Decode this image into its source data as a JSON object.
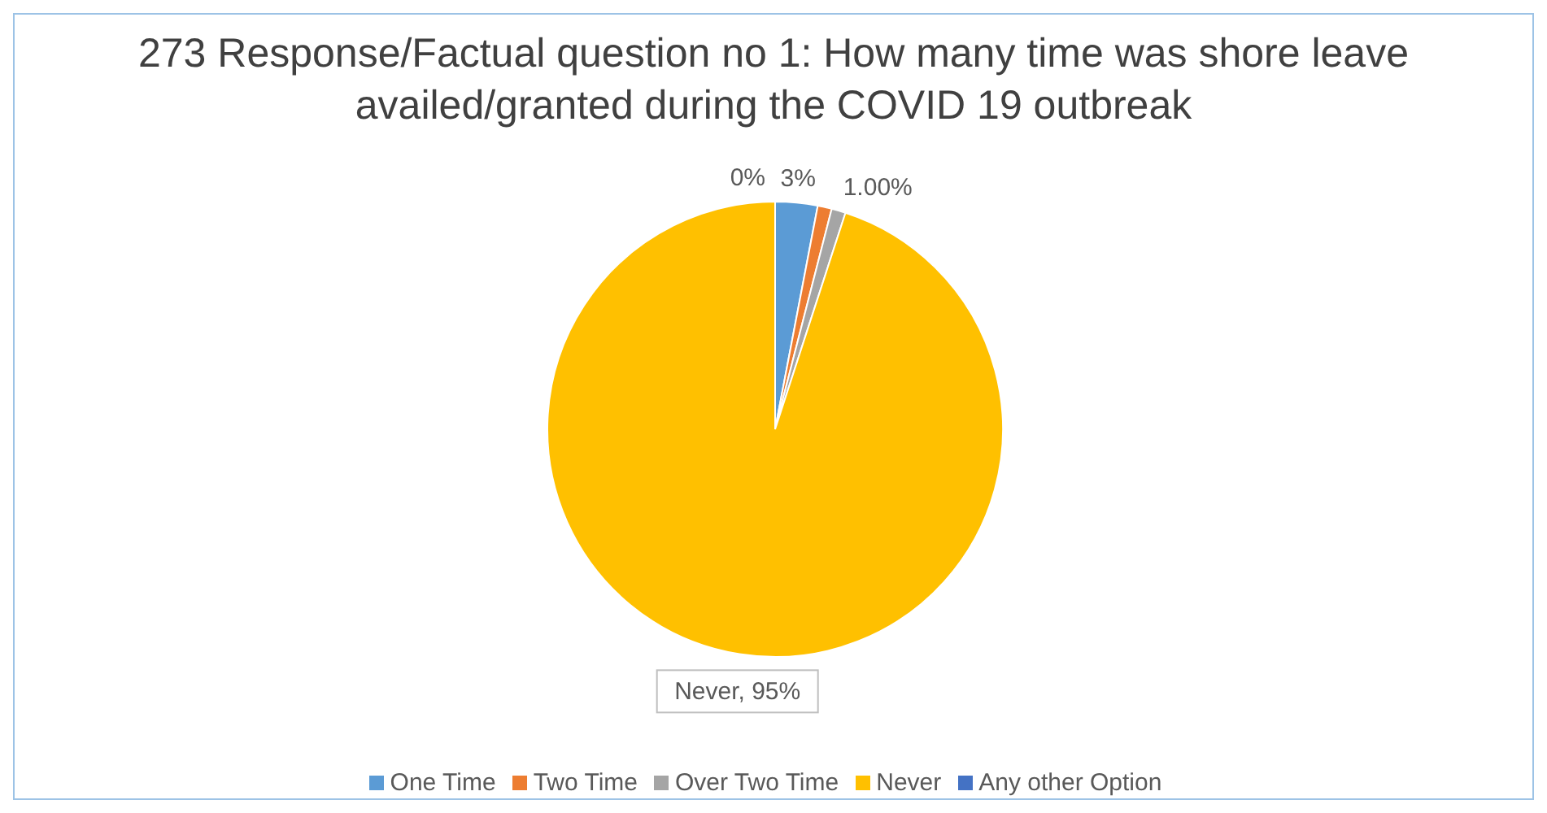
{
  "chart_data": {
    "type": "pie",
    "title": "273 Response/Factual question no 1: How many time was shore leave availed/granted during the COVID 19 outbreak",
    "categories": [
      "One Time",
      "Two Time",
      "Over Two Time",
      "Never",
      "Any other Option"
    ],
    "values": [
      3,
      1,
      1,
      95,
      0
    ],
    "colors": [
      "#5b9bd5",
      "#ed7d31",
      "#a5a5a5",
      "#ffc000",
      "#4472c4"
    ],
    "value_labels": [
      "3%",
      null,
      "1.00%",
      "Never, 95%",
      "0%"
    ],
    "legend": "bottom"
  }
}
